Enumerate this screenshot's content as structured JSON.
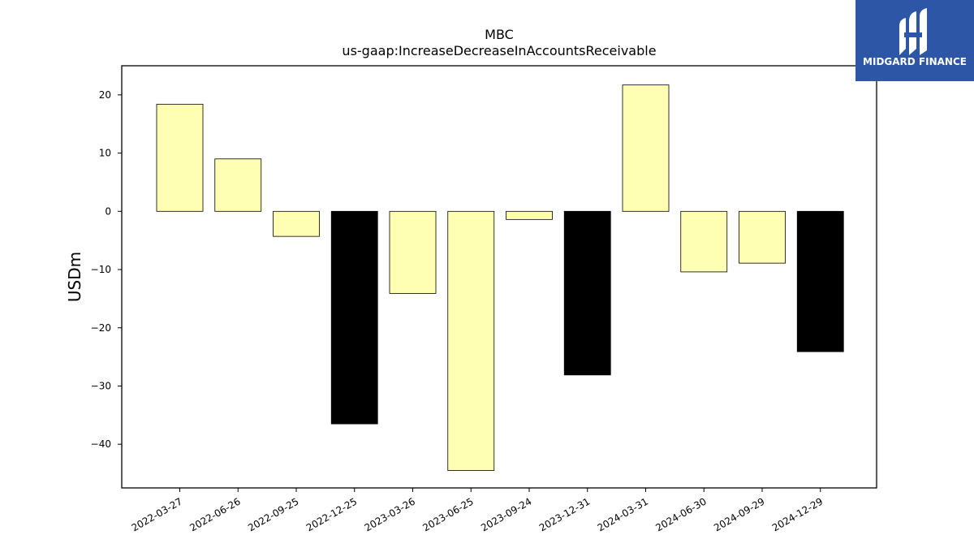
{
  "chart_data": {
    "type": "bar",
    "title": "MBC",
    "subtitle": "us-gaap:IncreaseDecreaseInAccountsReceivable",
    "xlabel": "",
    "ylabel": "USDm",
    "categories": [
      "2022-03-27",
      "2022-06-26",
      "2022-09-25",
      "2022-12-25",
      "2023-03-26",
      "2023-06-25",
      "2023-09-24",
      "2023-12-31",
      "2024-03-31",
      "2024-06-30",
      "2024-09-29",
      "2024-12-29"
    ],
    "values": [
      18.4,
      9.0,
      -4.3,
      -36.5,
      -14.1,
      -44.5,
      -1.4,
      -28.1,
      21.7,
      -10.4,
      -8.9,
      -24.1
    ],
    "highlighted": [
      false,
      false,
      false,
      true,
      false,
      false,
      false,
      true,
      false,
      false,
      false,
      true
    ],
    "ylim": [
      -47.5,
      25.0
    ],
    "yticks": [
      20,
      10,
      0,
      -10,
      -20,
      -30,
      -40
    ],
    "ytick_labels": [
      "20",
      "10",
      "0",
      "−10",
      "−20",
      "−30",
      "−40"
    ],
    "grid": false,
    "colors": {
      "default_bar": "#ffffb3",
      "highlight_bar": "#000000",
      "bar_edge": "#000000"
    }
  },
  "logo": {
    "text": "MIDGARD FINANCE",
    "background": "#2d56a6"
  }
}
